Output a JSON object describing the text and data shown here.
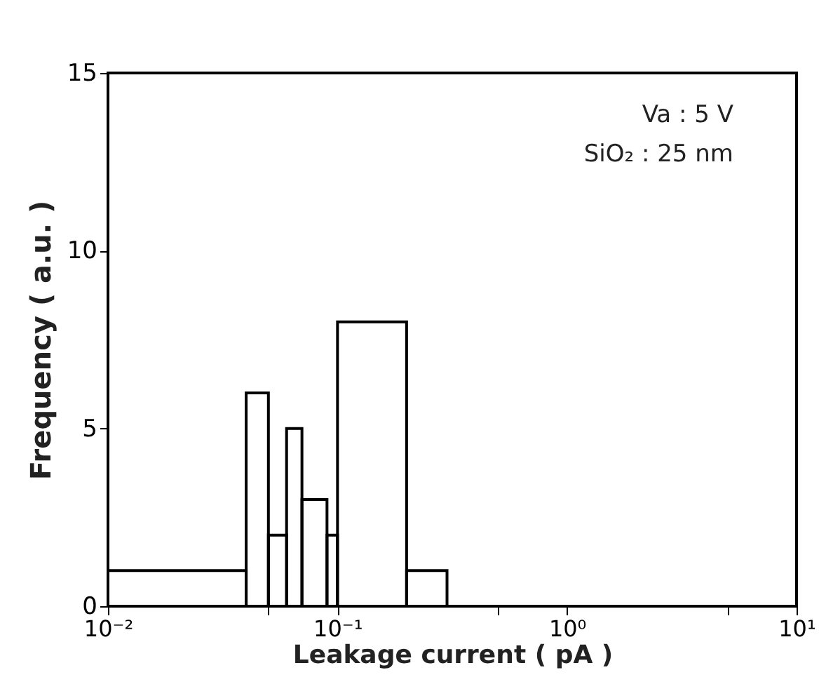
{
  "chart_data": {
    "type": "histogram",
    "xlabel": "Leakage  current   ( pA )",
    "ylabel": "Frequency  ( a.u. )",
    "bins": [
      0.01,
      0.04,
      0.05,
      0.06,
      0.07,
      0.09,
      0.1,
      0.2,
      0.3
    ],
    "values": [
      1,
      6,
      2,
      5,
      3,
      2,
      8,
      1
    ],
    "color": "#000000",
    "log": "x",
    "xlim": [
      0.01,
      10
    ],
    "xticks": [
      {
        "value": 0.01,
        "label": "10⁻²"
      },
      {
        "value": 0.05,
        "label": null
      },
      {
        "value": 0.1,
        "label": "10⁻¹"
      },
      {
        "value": 0.5,
        "label": null
      },
      {
        "value": 1,
        "label": "10⁰"
      },
      {
        "value": 5,
        "label": null
      },
      {
        "value": 10,
        "label": "10¹"
      }
    ],
    "ylim": [
      0,
      15
    ],
    "yticks": [
      0,
      5,
      10,
      15
    ],
    "annotations": [
      "Va :   5 V",
      "SiO₂ :  25 nm"
    ]
  }
}
